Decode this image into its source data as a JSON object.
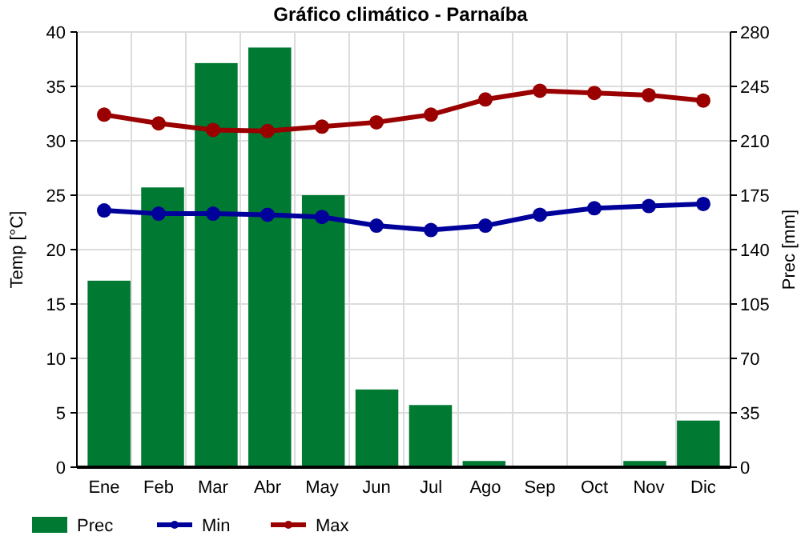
{
  "chart_data": {
    "type": "bar",
    "title": "Gráfico climático - Parnaíba",
    "ylabel": "Temp [°C]",
    "y2label": "Prec [mm]",
    "categories": [
      "Ene",
      "Feb",
      "Mar",
      "Abr",
      "May",
      "Jun",
      "Jul",
      "Ago",
      "Sep",
      "Oct",
      "Nov",
      "Dic"
    ],
    "series": [
      {
        "name": "Prec",
        "axis": "y2",
        "color": "#007a33",
        "values": [
          120,
          180,
          260,
          270,
          175,
          50,
          40,
          4,
          1,
          1,
          4,
          30
        ]
      },
      {
        "name": "Min",
        "type": "line",
        "color": "#00009a",
        "values": [
          23.6,
          23.3,
          23.3,
          23.2,
          23.0,
          22.2,
          21.8,
          22.2,
          23.2,
          23.8,
          24.0,
          24.2
        ]
      },
      {
        "name": "Max",
        "type": "line",
        "color": "#9a0000",
        "values": [
          32.4,
          31.6,
          31.0,
          30.9,
          31.3,
          31.7,
          32.4,
          33.8,
          34.6,
          34.4,
          34.2,
          33.7
        ]
      }
    ],
    "ylim": [
      0,
      40
    ],
    "yticks": [
      0,
      5,
      10,
      15,
      20,
      25,
      30,
      35,
      40
    ],
    "y2lim": [
      0,
      280
    ],
    "y2ticks": [
      0,
      35,
      70,
      105,
      140,
      175,
      210,
      245,
      280
    ],
    "grid": true,
    "legend": "bottom",
    "marker": "circle"
  }
}
